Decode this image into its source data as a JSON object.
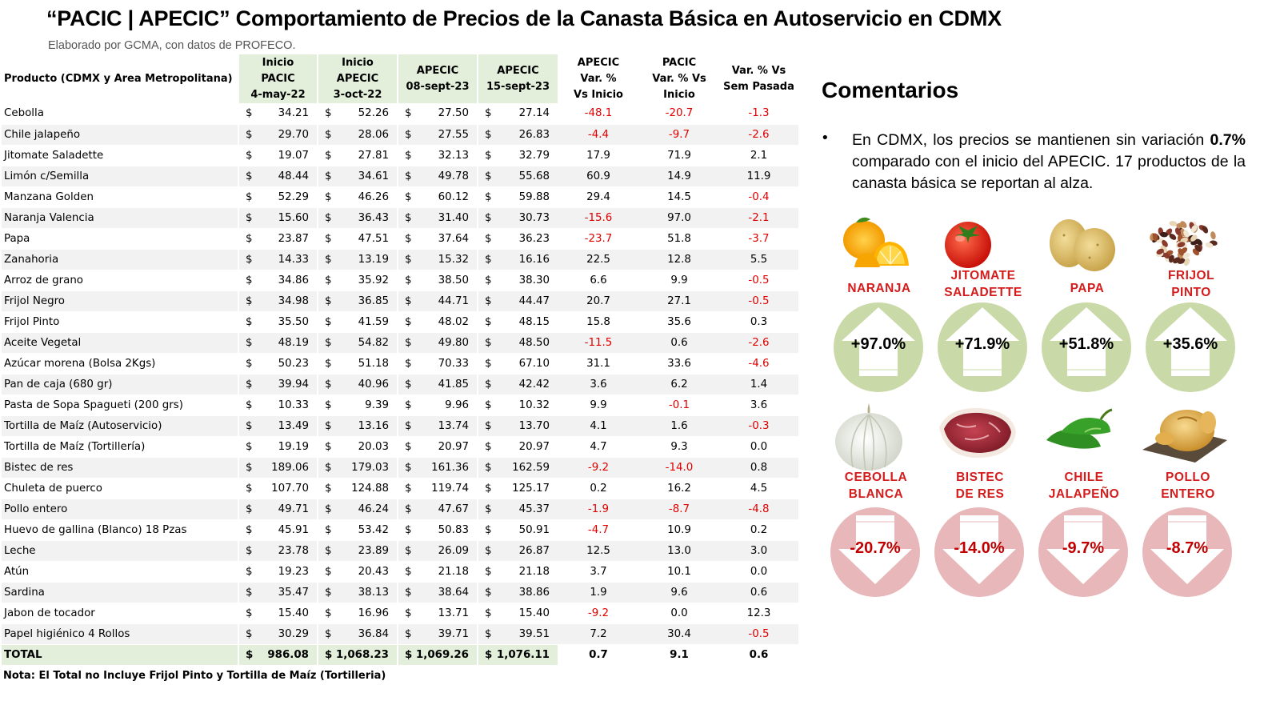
{
  "title": "“PACIC | APECIC” Comportamiento de Precios de la Canasta Básica en Autoservicio en CDMX",
  "subtitle": "Elaborado por GCMA, con datos de PROFECO.",
  "table": {
    "headers": {
      "product": "Producto (CDMX y Area Metropolitana)",
      "c1": [
        "Inicio",
        "PACIC",
        "4-may-22"
      ],
      "c2": [
        "Inicio",
        "APECIC",
        "3-oct-22"
      ],
      "c3": [
        "APECIC",
        "08-sept-23"
      ],
      "c4": [
        "APECIC",
        "15-sept-23"
      ],
      "c5": [
        "APECIC",
        "Var. %",
        "Vs  Inicio"
      ],
      "c6": [
        "PACIC",
        "Var. % Vs",
        "Inicio"
      ],
      "c7": [
        "Var. % Vs",
        "Sem Pasada"
      ]
    },
    "currency_symbol": "$",
    "rows": [
      {
        "product": "Cebolla",
        "pacic": "34.21",
        "apecic_ini": "52.26",
        "sep08": "27.50",
        "sep15": "27.14",
        "var_apecic": "-48.1",
        "var_pacic": "-20.7",
        "var_sem": "-1.3"
      },
      {
        "product": "Chile jalapeño",
        "pacic": "29.70",
        "apecic_ini": "28.06",
        "sep08": "27.55",
        "sep15": "26.83",
        "var_apecic": "-4.4",
        "var_pacic": "-9.7",
        "var_sem": "-2.6"
      },
      {
        "product": "Jitomate Saladette",
        "pacic": "19.07",
        "apecic_ini": "27.81",
        "sep08": "32.13",
        "sep15": "32.79",
        "var_apecic": "17.9",
        "var_pacic": "71.9",
        "var_sem": "2.1"
      },
      {
        "product": "Limón c/Semilla",
        "pacic": "48.44",
        "apecic_ini": "34.61",
        "sep08": "49.78",
        "sep15": "55.68",
        "var_apecic": "60.9",
        "var_pacic": "14.9",
        "var_sem": "11.9"
      },
      {
        "product": "Manzana Golden",
        "pacic": "52.29",
        "apecic_ini": "46.26",
        "sep08": "60.12",
        "sep15": "59.88",
        "var_apecic": "29.4",
        "var_pacic": "14.5",
        "var_sem": "-0.4"
      },
      {
        "product": "Naranja Valencia",
        "pacic": "15.60",
        "apecic_ini": "36.43",
        "sep08": "31.40",
        "sep15": "30.73",
        "var_apecic": "-15.6",
        "var_pacic": "97.0",
        "var_sem": "-2.1"
      },
      {
        "product": "Papa",
        "pacic": "23.87",
        "apecic_ini": "47.51",
        "sep08": "37.64",
        "sep15": "36.23",
        "var_apecic": "-23.7",
        "var_pacic": "51.8",
        "var_sem": "-3.7"
      },
      {
        "product": "Zanahoria",
        "pacic": "14.33",
        "apecic_ini": "13.19",
        "sep08": "15.32",
        "sep15": "16.16",
        "var_apecic": "22.5",
        "var_pacic": "12.8",
        "var_sem": "5.5"
      },
      {
        "product": "Arroz de grano",
        "pacic": "34.86",
        "apecic_ini": "35.92",
        "sep08": "38.50",
        "sep15": "38.30",
        "var_apecic": "6.6",
        "var_pacic": "9.9",
        "var_sem": "-0.5"
      },
      {
        "product": "Frijol Negro",
        "pacic": "34.98",
        "apecic_ini": "36.85",
        "sep08": "44.71",
        "sep15": "44.47",
        "var_apecic": "20.7",
        "var_pacic": "27.1",
        "var_sem": "-0.5"
      },
      {
        "product": "Frijol Pinto",
        "pacic": "35.50",
        "apecic_ini": "41.59",
        "sep08": "48.02",
        "sep15": "48.15",
        "var_apecic": "15.8",
        "var_pacic": "35.6",
        "var_sem": "0.3"
      },
      {
        "product": "Aceite Vegetal",
        "pacic": "48.19",
        "apecic_ini": "54.82",
        "sep08": "49.80",
        "sep15": "48.50",
        "var_apecic": "-11.5",
        "var_pacic": "0.6",
        "var_sem": "-2.6"
      },
      {
        "product": "Azúcar morena (Bolsa 2Kgs)",
        "pacic": "50.23",
        "apecic_ini": "51.18",
        "sep08": "70.33",
        "sep15": "67.10",
        "var_apecic": "31.1",
        "var_pacic": "33.6",
        "var_sem": "-4.6"
      },
      {
        "product": "Pan de caja (680 gr)",
        "pacic": "39.94",
        "apecic_ini": "40.96",
        "sep08": "41.85",
        "sep15": "42.42",
        "var_apecic": "3.6",
        "var_pacic": "6.2",
        "var_sem": "1.4"
      },
      {
        "product": "Pasta de Sopa Spagueti (200 grs)",
        "pacic": "10.33",
        "apecic_ini": "9.39",
        "sep08": "9.96",
        "sep15": "10.32",
        "var_apecic": "9.9",
        "var_pacic": "-0.1",
        "var_sem": "3.6"
      },
      {
        "product": "Tortilla de Maíz (Autoservicio)",
        "pacic": "13.49",
        "apecic_ini": "13.16",
        "sep08": "13.74",
        "sep15": "13.70",
        "var_apecic": "4.1",
        "var_pacic": "1.6",
        "var_sem": "-0.3"
      },
      {
        "product": "Tortilla de Maíz (Tortillería)",
        "pacic": "19.19",
        "apecic_ini": "20.03",
        "sep08": "20.97",
        "sep15": "20.97",
        "var_apecic": "4.7",
        "var_pacic": "9.3",
        "var_sem": "0.0"
      },
      {
        "product": "Bistec de res",
        "pacic": "189.06",
        "apecic_ini": "179.03",
        "sep08": "161.36",
        "sep15": "162.59",
        "var_apecic": "-9.2",
        "var_pacic": "-14.0",
        "var_sem": "0.8"
      },
      {
        "product": "Chuleta de puerco",
        "pacic": "107.70",
        "apecic_ini": "124.88",
        "sep08": "119.74",
        "sep15": "125.17",
        "var_apecic": "0.2",
        "var_pacic": "16.2",
        "var_sem": "4.5"
      },
      {
        "product": "Pollo entero",
        "pacic": "49.71",
        "apecic_ini": "46.24",
        "sep08": "47.67",
        "sep15": "45.37",
        "var_apecic": "-1.9",
        "var_pacic": "-8.7",
        "var_sem": "-4.8"
      },
      {
        "product": "Huevo de gallina (Blanco) 18 Pzas",
        "pacic": "45.91",
        "apecic_ini": "53.42",
        "sep08": "50.83",
        "sep15": "50.91",
        "var_apecic": "-4.7",
        "var_pacic": "10.9",
        "var_sem": "0.2"
      },
      {
        "product": "Leche",
        "pacic": "23.78",
        "apecic_ini": "23.89",
        "sep08": "26.09",
        "sep15": "26.87",
        "var_apecic": "12.5",
        "var_pacic": "13.0",
        "var_sem": "3.0"
      },
      {
        "product": "Atún",
        "pacic": "19.23",
        "apecic_ini": "20.43",
        "sep08": "21.18",
        "sep15": "21.18",
        "var_apecic": "3.7",
        "var_pacic": "10.1",
        "var_sem": "0.0"
      },
      {
        "product": "Sardina",
        "pacic": "35.47",
        "apecic_ini": "38.13",
        "sep08": "38.64",
        "sep15": "38.86",
        "var_apecic": "1.9",
        "var_pacic": "9.6",
        "var_sem": "0.6"
      },
      {
        "product": "Jabon de tocador",
        "pacic": "15.40",
        "apecic_ini": "16.96",
        "sep08": "13.71",
        "sep15": "15.40",
        "var_apecic": "-9.2",
        "var_pacic": "0.0",
        "var_sem": "12.3"
      },
      {
        "product": "Papel higiénico 4 Rollos",
        "pacic": "30.29",
        "apecic_ini": "36.84",
        "sep08": "39.71",
        "sep15": "39.51",
        "var_apecic": "7.2",
        "var_pacic": "30.4",
        "var_sem": "-0.5"
      }
    ],
    "total": {
      "product": "TOTAL",
      "pacic": "986.08",
      "apecic_ini": "1,068.23",
      "sep08": "1,069.26",
      "sep15": "1,076.11",
      "var_apecic": "0.7",
      "var_pacic": "9.1",
      "var_sem": "0.6"
    },
    "note": "Nota: El Total no Incluye Frijol Pinto y Tortilla de Maíz (Tortilleria)"
  },
  "comments": {
    "title": "Comentarios",
    "bullet": "•",
    "text_before": "En CDMX, los precios se mantienen sin variación ",
    "text_bold": "0.7%",
    "text_after": " comparado con el inicio del APECIC. 17 productos de la canasta básica se reportan al alza."
  },
  "highlights_up": [
    {
      "label": [
        "NARANJA"
      ],
      "value": "+97.0%",
      "icon": "orange-icon"
    },
    {
      "label": [
        "JITOMATE",
        "SALADETTE"
      ],
      "value": "+71.9%",
      "icon": "tomato-icon"
    },
    {
      "label": [
        "PAPA"
      ],
      "value": "+51.8%",
      "icon": "potato-icon"
    },
    {
      "label": [
        "FRIJOL",
        "PINTO"
      ],
      "value": "+35.6%",
      "icon": "beans-icon"
    }
  ],
  "highlights_down": [
    {
      "label": [
        "CEBOLLA",
        "BLANCA"
      ],
      "value": "-20.7%",
      "icon": "onion-icon"
    },
    {
      "label": [
        "BISTEC",
        "DE RES"
      ],
      "value": "-14.0%",
      "icon": "beef-icon"
    },
    {
      "label": [
        "CHILE",
        "JALAPEÑO"
      ],
      "value": "-9.7%",
      "icon": "chili-icon"
    },
    {
      "label": [
        "POLLO",
        "ENTERO"
      ],
      "value": "-8.7%",
      "icon": "chicken-icon"
    }
  ],
  "colors": {
    "up_circle": "#c9d9a8",
    "down_circle": "#e8b7b9",
    "label_red": "#d41c1c",
    "negative_red": "#e00000",
    "header_green": "#e3efdb"
  }
}
